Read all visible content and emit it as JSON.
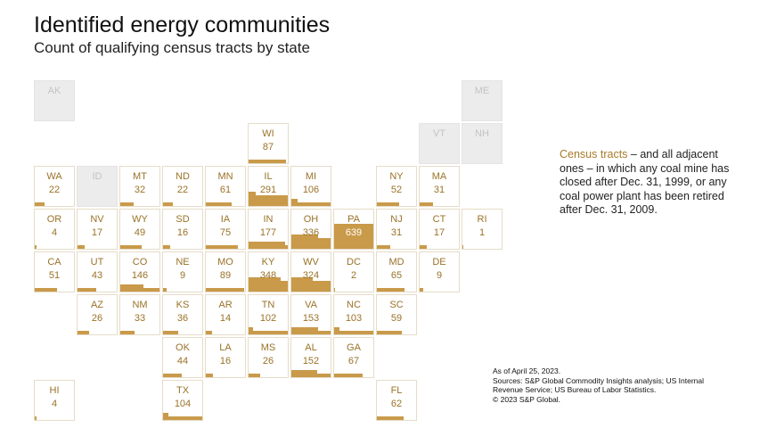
{
  "title": "Identified energy communities",
  "subtitle": "Count of qualifying census tracts by state",
  "note": {
    "highlight": "Census tracts",
    "text": " – and all adjacent ones – in which any coal mine has closed after Dec. 31, 1999, or any coal power plant has been retired after Dec. 31, 2009."
  },
  "sources": [
    "As of April 25, 2023.",
    "Sources: S&P Global Commodity Insights analysis; US Internal",
    "Revenue Service; US Bureau of Labor Statistics.",
    "© 2023 S&P Global."
  ],
  "colors": {
    "fill": "#c99a4a",
    "text": "#9a7228",
    "na": "#ececec"
  },
  "chart_data": {
    "type": "table",
    "title": "Identified energy communities",
    "subtitle": "Count of qualifying census tracts by state",
    "max": 639,
    "states": [
      {
        "abbr": "AK",
        "value": null
      },
      {
        "abbr": "ME",
        "value": null
      },
      {
        "abbr": "WI",
        "value": 87
      },
      {
        "abbr": "VT",
        "value": null
      },
      {
        "abbr": "NH",
        "value": null
      },
      {
        "abbr": "WA",
        "value": 22
      },
      {
        "abbr": "ID",
        "value": null
      },
      {
        "abbr": "MT",
        "value": 32
      },
      {
        "abbr": "ND",
        "value": 22
      },
      {
        "abbr": "MN",
        "value": 61
      },
      {
        "abbr": "IL",
        "value": 291
      },
      {
        "abbr": "MI",
        "value": 106
      },
      {
        "abbr": "NY",
        "value": 52
      },
      {
        "abbr": "MA",
        "value": 31
      },
      {
        "abbr": "OR",
        "value": 4
      },
      {
        "abbr": "NV",
        "value": 17
      },
      {
        "abbr": "WY",
        "value": 49
      },
      {
        "abbr": "SD",
        "value": 16
      },
      {
        "abbr": "IA",
        "value": 75
      },
      {
        "abbr": "IN",
        "value": 177
      },
      {
        "abbr": "OH",
        "value": 336
      },
      {
        "abbr": "PA",
        "value": 639
      },
      {
        "abbr": "NJ",
        "value": 31
      },
      {
        "abbr": "CT",
        "value": 17
      },
      {
        "abbr": "RI",
        "value": 1
      },
      {
        "abbr": "CA",
        "value": 51
      },
      {
        "abbr": "UT",
        "value": 43
      },
      {
        "abbr": "CO",
        "value": 146
      },
      {
        "abbr": "NE",
        "value": 9
      },
      {
        "abbr": "MO",
        "value": 89
      },
      {
        "abbr": "KY",
        "value": 348
      },
      {
        "abbr": "WV",
        "value": 324
      },
      {
        "abbr": "DC",
        "value": 2
      },
      {
        "abbr": "MD",
        "value": 65
      },
      {
        "abbr": "DE",
        "value": 9
      },
      {
        "abbr": "AZ",
        "value": 26
      },
      {
        "abbr": "NM",
        "value": 33
      },
      {
        "abbr": "KS",
        "value": 36
      },
      {
        "abbr": "AR",
        "value": 14
      },
      {
        "abbr": "TN",
        "value": 102
      },
      {
        "abbr": "VA",
        "value": 153
      },
      {
        "abbr": "NC",
        "value": 103
      },
      {
        "abbr": "SC",
        "value": 59
      },
      {
        "abbr": "OK",
        "value": 44
      },
      {
        "abbr": "LA",
        "value": 16
      },
      {
        "abbr": "MS",
        "value": 26
      },
      {
        "abbr": "AL",
        "value": 152
      },
      {
        "abbr": "GA",
        "value": 67
      },
      {
        "abbr": "HI",
        "value": 4
      },
      {
        "abbr": "TX",
        "value": 104
      },
      {
        "abbr": "FL",
        "value": 62
      }
    ]
  }
}
